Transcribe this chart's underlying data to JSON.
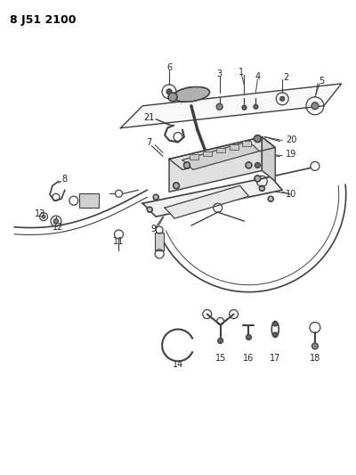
{
  "title": "8 J51 2100",
  "bg_color": "#ffffff",
  "line_color": "#404040",
  "label_color": "#222222",
  "fig_width": 4.0,
  "fig_height": 5.33,
  "dpi": 100
}
